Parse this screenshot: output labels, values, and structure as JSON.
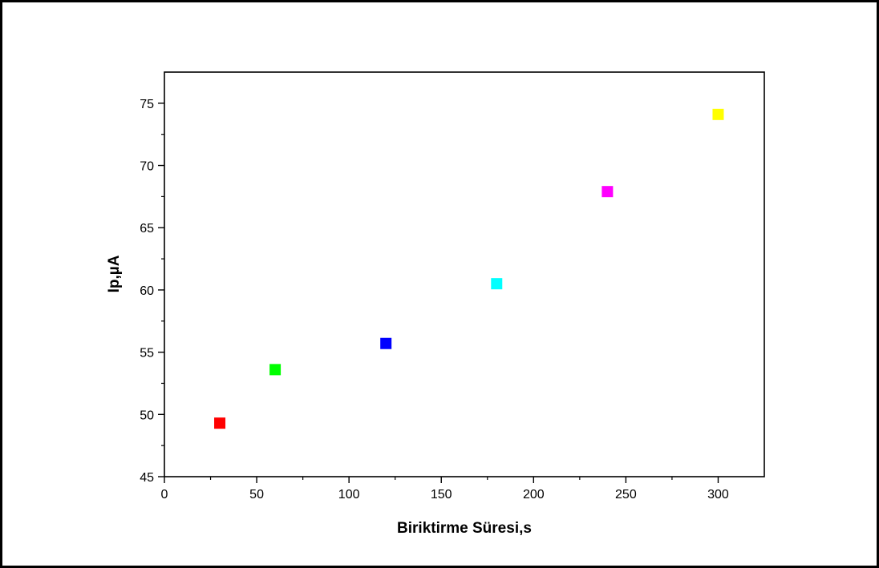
{
  "chart_data": {
    "type": "scatter",
    "title": "",
    "xlabel": "Biriktirme Süresi,s",
    "ylabel": "Ip,µA",
    "xlim": [
      0,
      325
    ],
    "ylim": [
      45,
      77.5
    ],
    "x_ticks": [
      0,
      50,
      100,
      150,
      200,
      250,
      300
    ],
    "y_ticks": [
      45,
      50,
      55,
      60,
      65,
      70,
      75
    ],
    "grid": false,
    "legend": "none",
    "marker": "square",
    "points": [
      {
        "x": 30,
        "y": 49.3,
        "color": "#ff0000"
      },
      {
        "x": 60,
        "y": 53.6,
        "color": "#00ff00"
      },
      {
        "x": 120,
        "y": 55.7,
        "color": "#0000ff"
      },
      {
        "x": 180,
        "y": 60.5,
        "color": "#00ffff"
      },
      {
        "x": 240,
        "y": 67.9,
        "color": "#ff00ff"
      },
      {
        "x": 300,
        "y": 74.1,
        "color": "#ffff00"
      }
    ]
  }
}
